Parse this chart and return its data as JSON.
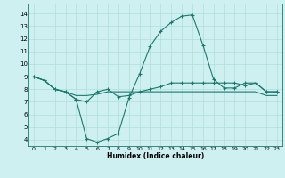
{
  "xlabel": "Humidex (Indice chaleur)",
  "background_color": "#cff0f0",
  "grid_color": "#b0dede",
  "line_color": "#1a7a6e",
  "xlim": [
    -0.5,
    23.5
  ],
  "ylim": [
    3.5,
    14.8
  ],
  "xticks": [
    0,
    1,
    2,
    3,
    4,
    5,
    6,
    7,
    8,
    9,
    10,
    11,
    12,
    13,
    14,
    15,
    16,
    17,
    18,
    19,
    20,
    21,
    22,
    23
  ],
  "yticks": [
    4,
    5,
    6,
    7,
    8,
    9,
    10,
    11,
    12,
    13,
    14
  ],
  "line1_x": [
    0,
    1,
    2,
    3,
    4,
    5,
    6,
    7,
    8,
    9,
    10,
    11,
    12,
    13,
    14,
    15,
    16,
    17,
    18,
    19,
    20,
    21,
    22,
    23
  ],
  "line1_y": [
    9.0,
    8.7,
    8.0,
    7.8,
    7.2,
    7.0,
    7.8,
    8.0,
    7.4,
    7.5,
    7.8,
    8.0,
    8.2,
    8.5,
    8.5,
    8.5,
    8.5,
    8.5,
    8.5,
    8.5,
    8.3,
    8.5,
    7.8,
    7.8
  ],
  "line2_x": [
    0,
    1,
    2,
    3,
    4,
    5,
    6,
    7,
    8,
    9,
    10,
    11,
    12,
    13,
    14,
    15,
    16,
    17,
    18,
    19,
    20,
    21,
    22,
    23
  ],
  "line2_y": [
    9.0,
    8.7,
    8.0,
    7.8,
    7.2,
    4.1,
    3.8,
    4.1,
    4.5,
    7.3,
    9.2,
    11.4,
    12.6,
    13.3,
    13.8,
    13.9,
    11.5,
    8.8,
    8.1,
    8.1,
    8.5,
    8.5,
    7.8,
    7.8
  ],
  "line3_x": [
    0,
    1,
    2,
    3,
    4,
    5,
    6,
    7,
    8,
    9,
    10,
    11,
    12,
    13,
    14,
    15,
    16,
    17,
    18,
    19,
    20,
    21,
    22,
    23
  ],
  "line3_y": [
    9.0,
    8.7,
    8.0,
    7.8,
    7.5,
    7.5,
    7.6,
    7.8,
    7.8,
    7.8,
    7.8,
    7.8,
    7.8,
    7.8,
    7.8,
    7.8,
    7.8,
    7.8,
    7.8,
    7.8,
    7.8,
    7.8,
    7.5,
    7.5
  ]
}
